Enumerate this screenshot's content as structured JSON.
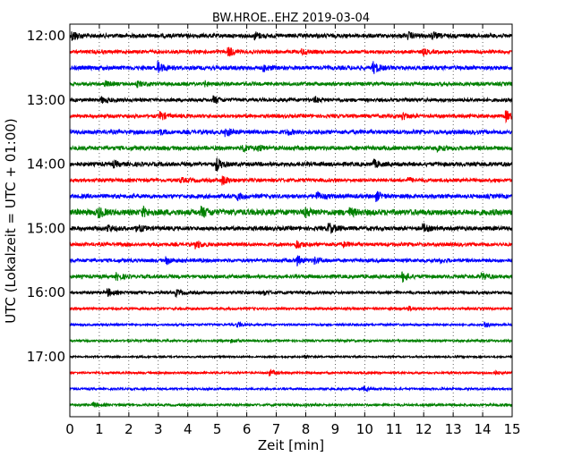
{
  "chart_data": {
    "type": "line",
    "title": "BW.HROE..EHZ 2019-03-04",
    "xlabel": "Zeit  [min]",
    "ylabel": "UTC (Lokalzeit = UTC + 01:00)",
    "xlim": [
      0,
      15
    ],
    "x_ticks": [
      "0",
      "1",
      "2",
      "3",
      "4",
      "5",
      "6",
      "7",
      "8",
      "9",
      "10",
      "11",
      "12",
      "13",
      "14",
      "15"
    ],
    "y_ticks": [
      {
        "label": "12:00",
        "trace": 0
      },
      {
        "label": "13:00",
        "trace": 4
      },
      {
        "label": "14:00",
        "trace": 8
      },
      {
        "label": "15:00",
        "trace": 12
      },
      {
        "label": "16:00",
        "trace": 16
      },
      {
        "label": "17:00",
        "trace": 20
      }
    ],
    "grid": true,
    "trace_interval_min": 15,
    "colors": [
      "#000000",
      "#ff0000",
      "#0000ff",
      "#008000"
    ],
    "traces": [
      {
        "start": "12:00",
        "amp": 0.35,
        "events": [
          [
            0.1,
            0.8
          ],
          [
            6.3,
            0.5
          ],
          [
            11.5,
            0.45
          ],
          [
            12.3,
            0.45
          ]
        ]
      },
      {
        "start": "12:15",
        "amp": 0.3,
        "events": [
          [
            5.4,
            0.7
          ],
          [
            7.9,
            0.4
          ],
          [
            12.0,
            0.35
          ]
        ]
      },
      {
        "start": "12:30",
        "amp": 0.35,
        "events": [
          [
            3.0,
            0.9
          ],
          [
            10.3,
            0.9
          ],
          [
            6.6,
            0.4
          ]
        ]
      },
      {
        "start": "12:45",
        "amp": 0.3,
        "events": [
          [
            1.2,
            0.4
          ],
          [
            2.3,
            0.4
          ],
          [
            4.6,
            0.35
          ]
        ]
      },
      {
        "start": "13:00",
        "amp": 0.3,
        "events": [
          [
            1.1,
            0.4
          ],
          [
            4.9,
            0.55
          ],
          [
            8.3,
            0.4
          ]
        ]
      },
      {
        "start": "13:15",
        "amp": 0.3,
        "events": [
          [
            3.1,
            0.6
          ],
          [
            11.3,
            0.5
          ],
          [
            14.8,
            0.8
          ]
        ]
      },
      {
        "start": "13:30",
        "amp": 0.35,
        "events": [
          [
            3.0,
            0.5
          ],
          [
            5.3,
            0.65
          ],
          [
            7.4,
            0.35
          ]
        ]
      },
      {
        "start": "13:45",
        "amp": 0.35,
        "events": [
          [
            5.9,
            0.55
          ],
          [
            6.4,
            0.4
          ],
          [
            12.5,
            0.35
          ]
        ]
      },
      {
        "start": "14:00",
        "amp": 0.35,
        "events": [
          [
            1.5,
            0.4
          ],
          [
            5.0,
            0.9
          ],
          [
            10.3,
            0.6
          ]
        ]
      },
      {
        "start": "14:15",
        "amp": 0.3,
        "events": [
          [
            5.2,
            0.65
          ],
          [
            3.8,
            0.3
          ],
          [
            11.5,
            0.3
          ]
        ]
      },
      {
        "start": "14:30",
        "amp": 0.35,
        "events": [
          [
            5.7,
            0.5
          ],
          [
            8.4,
            0.6
          ],
          [
            10.4,
            0.7
          ]
        ]
      },
      {
        "start": "14:45",
        "amp": 0.5,
        "events": [
          [
            1.0,
            0.6
          ],
          [
            2.5,
            0.55
          ],
          [
            4.5,
            0.7
          ],
          [
            8.0,
            0.55
          ],
          [
            9.5,
            0.5
          ]
        ]
      },
      {
        "start": "15:00",
        "amp": 0.35,
        "events": [
          [
            1.3,
            0.55
          ],
          [
            2.3,
            0.55
          ],
          [
            8.8,
            0.85
          ],
          [
            12.0,
            0.55
          ]
        ]
      },
      {
        "start": "15:15",
        "amp": 0.3,
        "events": [
          [
            4.3,
            0.6
          ],
          [
            7.7,
            0.65
          ],
          [
            9.3,
            0.35
          ]
        ]
      },
      {
        "start": "15:30",
        "amp": 0.3,
        "events": [
          [
            3.3,
            0.5
          ],
          [
            7.7,
            0.8
          ],
          [
            8.3,
            0.5
          ],
          [
            12.5,
            0.35
          ]
        ]
      },
      {
        "start": "15:45",
        "amp": 0.3,
        "events": [
          [
            1.6,
            0.5
          ],
          [
            11.3,
            0.85
          ],
          [
            14.0,
            0.45
          ]
        ]
      },
      {
        "start": "16:00",
        "amp": 0.25,
        "events": [
          [
            1.3,
            0.6
          ],
          [
            3.6,
            0.5
          ],
          [
            6.6,
            0.35
          ]
        ]
      },
      {
        "start": "16:15",
        "amp": 0.2,
        "events": [
          [
            11.5,
            0.35
          ]
        ]
      },
      {
        "start": "16:30",
        "amp": 0.18,
        "events": [
          [
            5.7,
            0.4
          ],
          [
            14.1,
            0.4
          ]
        ]
      },
      {
        "start": "16:45",
        "amp": 0.18,
        "events": [
          [
            5.5,
            0.3
          ]
        ]
      },
      {
        "start": "17:00",
        "amp": 0.15,
        "events": [
          [
            8.0,
            0.2
          ]
        ]
      },
      {
        "start": "17:15",
        "amp": 0.18,
        "events": [
          [
            6.8,
            0.4
          ],
          [
            14.4,
            0.35
          ]
        ]
      },
      {
        "start": "17:30",
        "amp": 0.18,
        "events": [
          [
            10.0,
            0.3
          ]
        ]
      },
      {
        "start": "17:45",
        "amp": 0.2,
        "events": [
          [
            0.8,
            0.4
          ]
        ]
      }
    ]
  }
}
